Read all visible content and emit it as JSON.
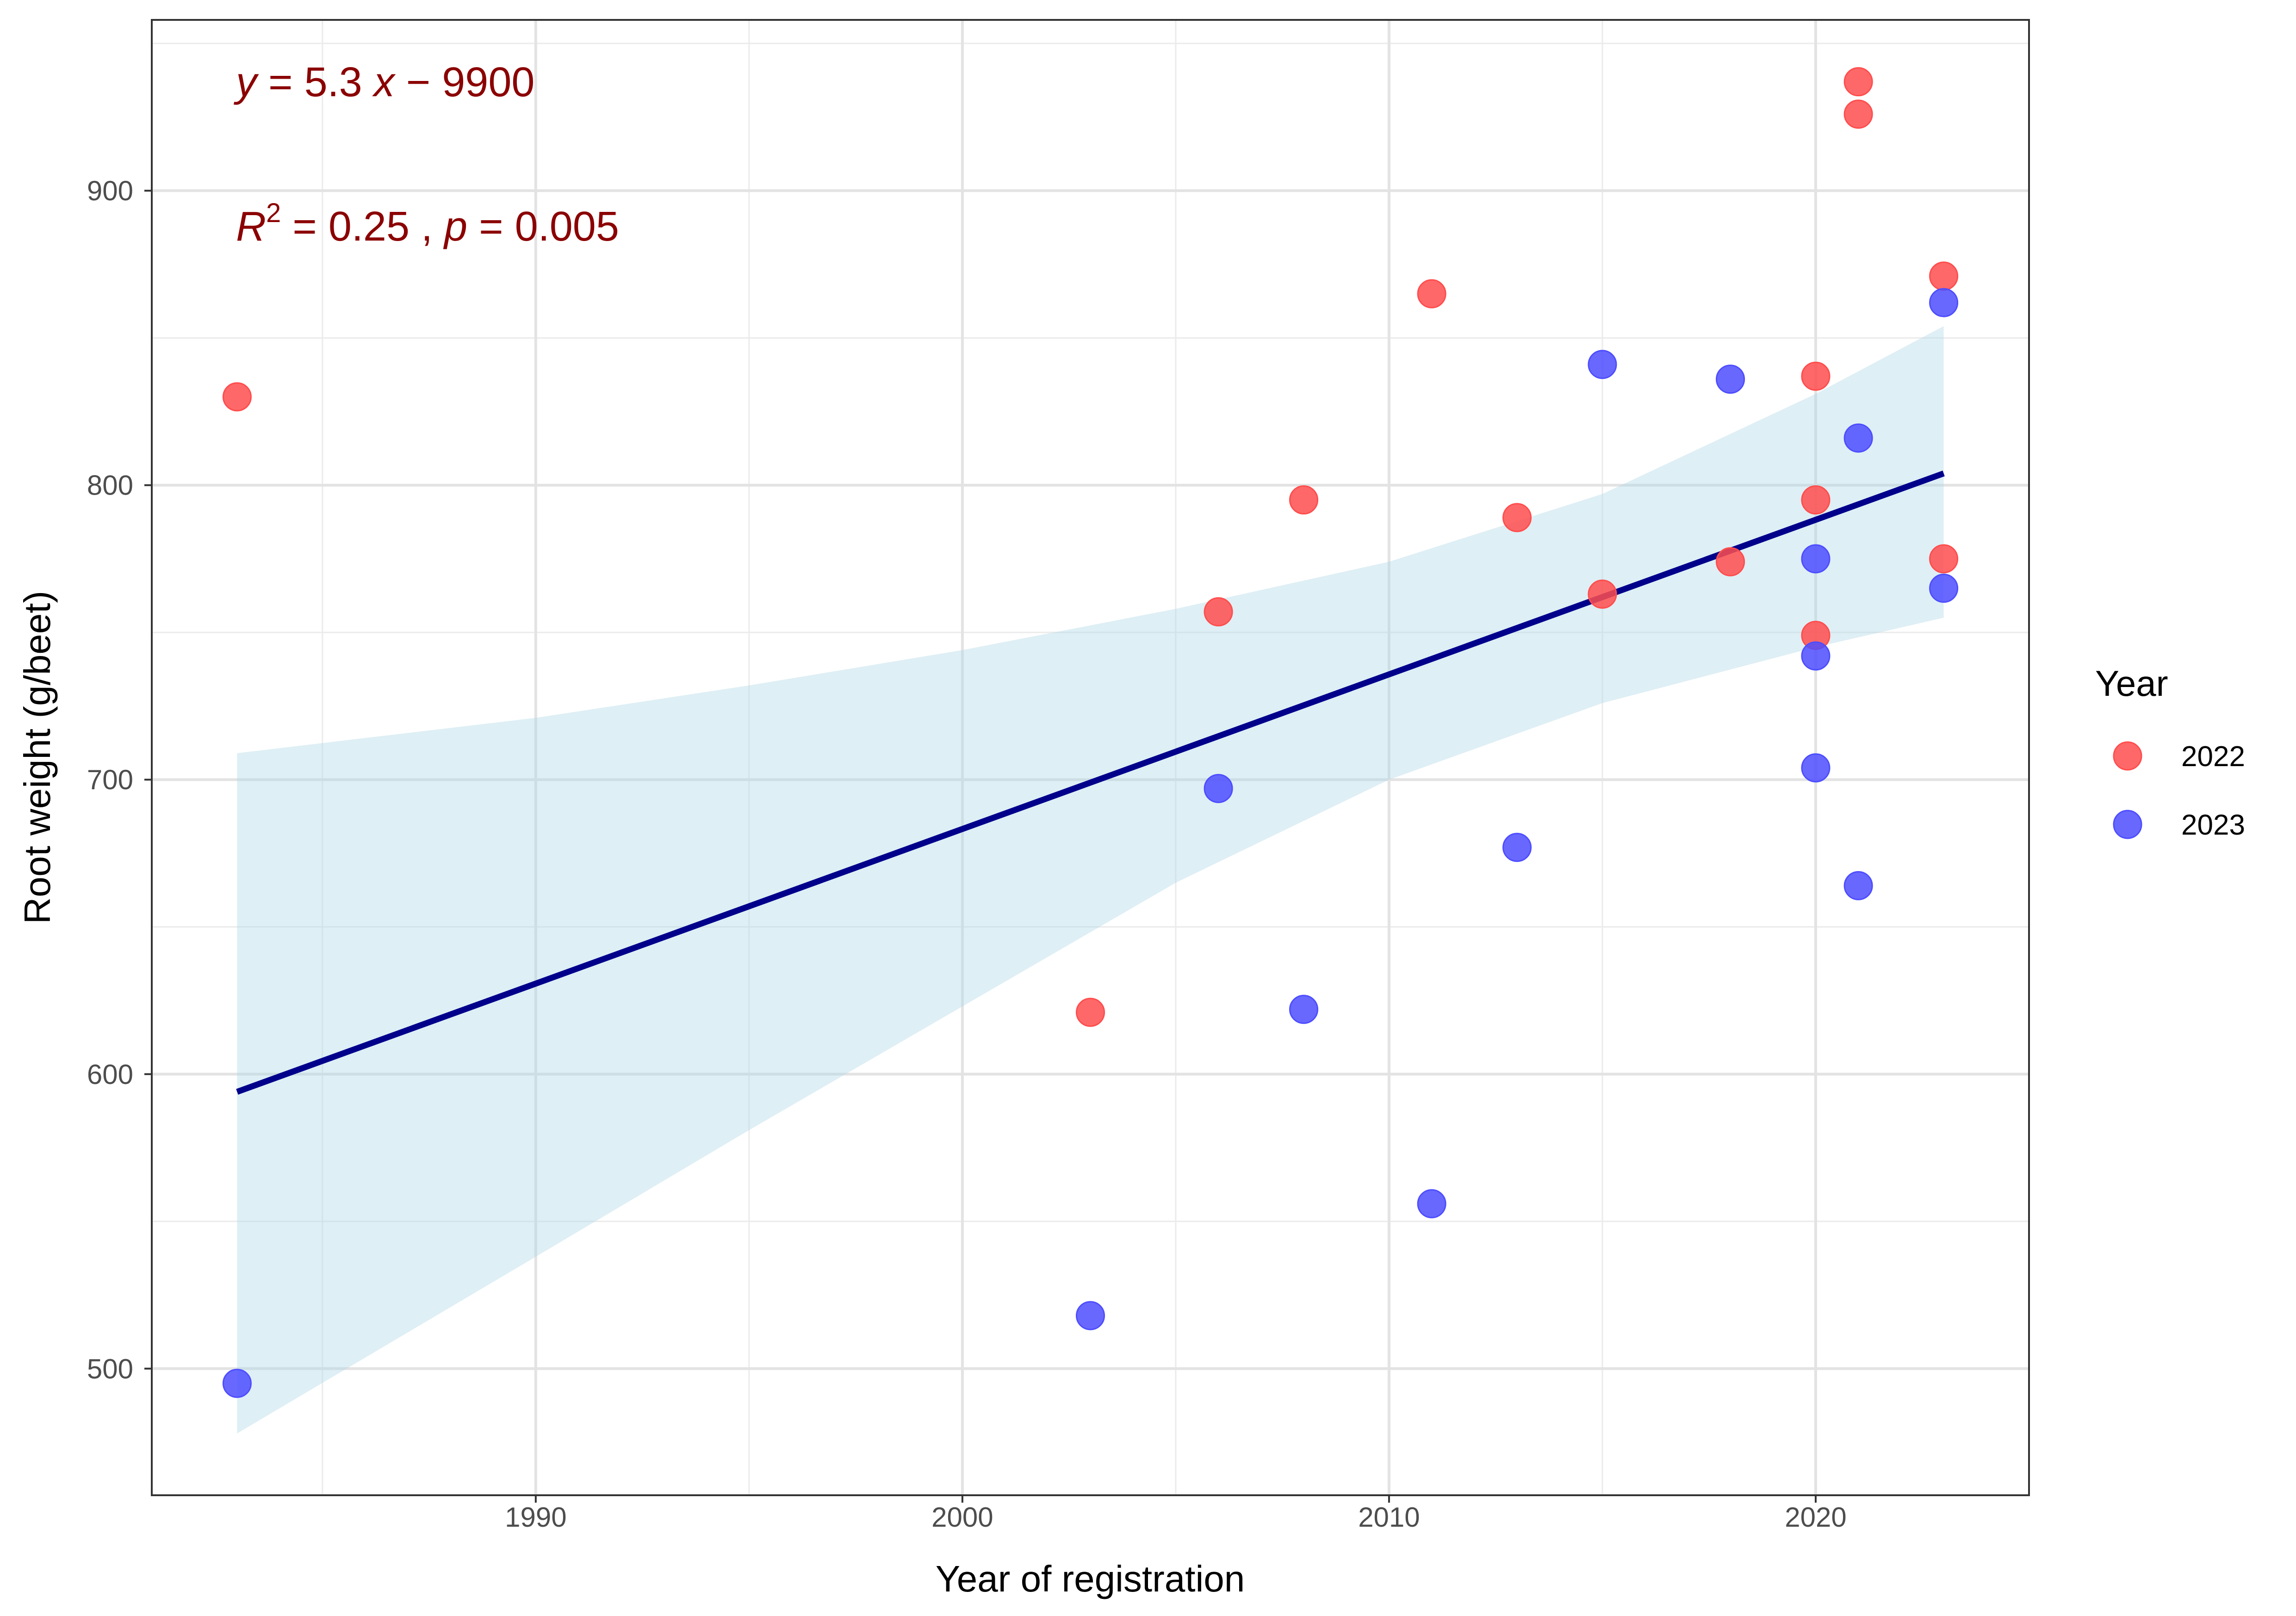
{
  "chart_data": {
    "type": "scatter",
    "title": "",
    "xlabel": "Year of registration",
    "ylabel": "Root weight (g/beet)",
    "xlim": [
      1981,
      2025
    ],
    "ylim": [
      457,
      958
    ],
    "xticks": [
      1990,
      2000,
      2010,
      2020
    ],
    "yticks": [
      500,
      600,
      700,
      800,
      900
    ],
    "x_tick_labels": [
      "1990",
      "2000",
      "2010",
      "2020"
    ],
    "y_tick_labels": [
      "500",
      "600",
      "700",
      "800",
      "900"
    ],
    "grid": true,
    "legend": {
      "title": "Year",
      "position": "right"
    },
    "series": [
      {
        "name": "2022",
        "color": "#ff4d4d",
        "points": [
          {
            "x": 1983,
            "y": 830
          },
          {
            "x": 2003,
            "y": 621
          },
          {
            "x": 2006,
            "y": 757
          },
          {
            "x": 2008,
            "y": 795
          },
          {
            "x": 2011,
            "y": 865
          },
          {
            "x": 2013,
            "y": 789
          },
          {
            "x": 2015,
            "y": 763
          },
          {
            "x": 2018,
            "y": 774
          },
          {
            "x": 2020,
            "y": 837
          },
          {
            "x": 2020,
            "y": 795
          },
          {
            "x": 2020,
            "y": 749
          },
          {
            "x": 2021,
            "y": 937
          },
          {
            "x": 2021,
            "y": 926
          },
          {
            "x": 2023,
            "y": 871
          },
          {
            "x": 2023,
            "y": 775
          }
        ]
      },
      {
        "name": "2023",
        "color": "#4d4dff",
        "points": [
          {
            "x": 1983,
            "y": 495
          },
          {
            "x": 2003,
            "y": 518
          },
          {
            "x": 2006,
            "y": 697
          },
          {
            "x": 2008,
            "y": 622
          },
          {
            "x": 2011,
            "y": 556
          },
          {
            "x": 2013,
            "y": 677
          },
          {
            "x": 2015,
            "y": 841
          },
          {
            "x": 2018,
            "y": 836
          },
          {
            "x": 2020,
            "y": 775
          },
          {
            "x": 2020,
            "y": 742
          },
          {
            "x": 2020,
            "y": 704
          },
          {
            "x": 2021,
            "y": 816
          },
          {
            "x": 2021,
            "y": 664
          },
          {
            "x": 2023,
            "y": 862
          },
          {
            "x": 2023,
            "y": 765
          }
        ]
      }
    ],
    "regression": {
      "line_color": "#00008b",
      "band_color": "#add8e6",
      "x_start": 1983,
      "x_end": 2023,
      "y_start": 594,
      "y_end": 804,
      "ci_band": [
        {
          "x": 1983,
          "lo": 478,
          "hi": 709
        },
        {
          "x": 1990,
          "lo": 538,
          "hi": 721
        },
        {
          "x": 1995,
          "lo": 581,
          "hi": 732
        },
        {
          "x": 2000,
          "lo": 623,
          "hi": 744
        },
        {
          "x": 2005,
          "lo": 665,
          "hi": 758
        },
        {
          "x": 2010,
          "lo": 700,
          "hi": 774
        },
        {
          "x": 2015,
          "lo": 726,
          "hi": 797
        },
        {
          "x": 2020,
          "lo": 745,
          "hi": 831
        },
        {
          "x": 2023,
          "lo": 755,
          "hi": 854
        }
      ]
    },
    "annotations": {
      "equation": {
        "y_var": "y",
        "eq_mid": " = 5.3 ",
        "x_var": "x",
        "eq_end": " − 9900"
      },
      "fit": {
        "r_var": "R",
        "r_sup": "2",
        "r_val": " = 0.25 , ",
        "p_var": "p",
        "p_val": " = 0.005"
      }
    }
  }
}
